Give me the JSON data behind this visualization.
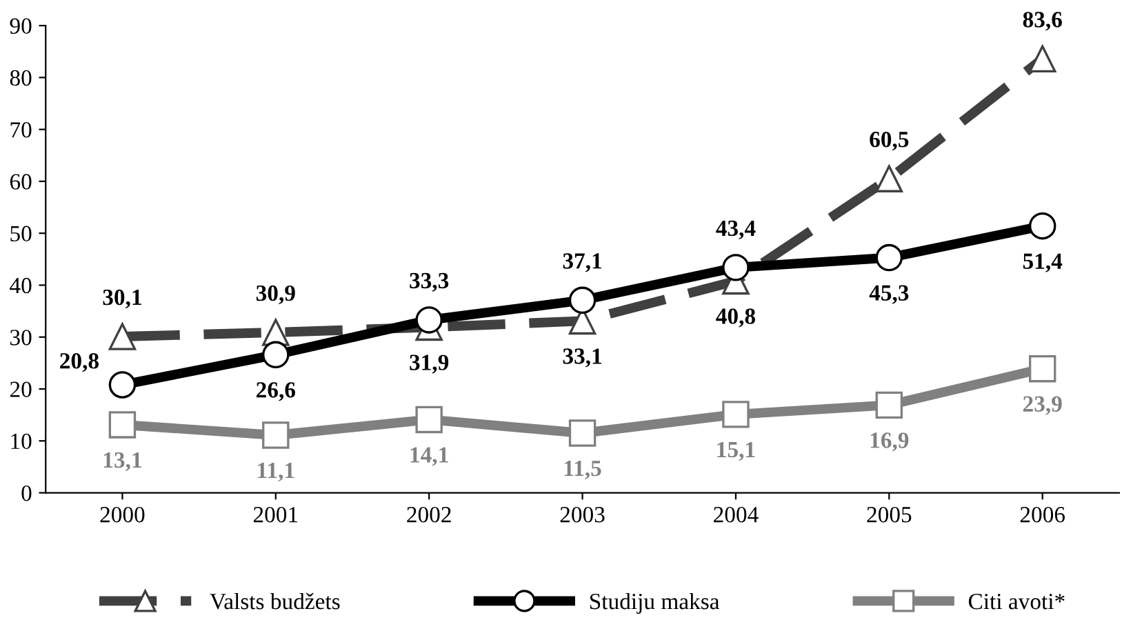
{
  "chart_data": {
    "type": "line",
    "categories": [
      "2000",
      "2001",
      "2002",
      "2003",
      "2004",
      "2005",
      "2006"
    ],
    "ylim": [
      0,
      90
    ],
    "yticks": [
      0,
      10,
      20,
      30,
      40,
      50,
      60,
      70,
      80,
      90
    ],
    "grid": false,
    "legend": "bottom",
    "series": [
      {
        "name": "Valsts budžets",
        "color": "#404040",
        "line_style": "dashed",
        "marker": "triangle",
        "values": [
          30.1,
          30.9,
          31.9,
          33.1,
          40.8,
          60.5,
          83.6
        ],
        "value_labels": [
          "30,1",
          "30,9",
          "31,9",
          "33,1",
          "40,8",
          "60,5",
          "83,6"
        ]
      },
      {
        "name": "Studiju maksa",
        "color": "#000000",
        "line_style": "solid",
        "marker": "circle",
        "values": [
          20.8,
          26.6,
          33.3,
          37.1,
          43.4,
          45.3,
          51.4
        ],
        "value_labels": [
          "20,8",
          "26,6",
          "33,3",
          "37,1",
          "43,4",
          "45,3",
          "51,4"
        ]
      },
      {
        "name": "Citi avoti*",
        "color": "#808080",
        "line_style": "solid",
        "marker": "square",
        "values": [
          13.1,
          11.1,
          14.1,
          11.5,
          15.1,
          16.9,
          23.9
        ],
        "value_labels": [
          "13,1",
          "11,1",
          "14,1",
          "11,5",
          "15,1",
          "16,9",
          "23,9"
        ]
      }
    ]
  }
}
